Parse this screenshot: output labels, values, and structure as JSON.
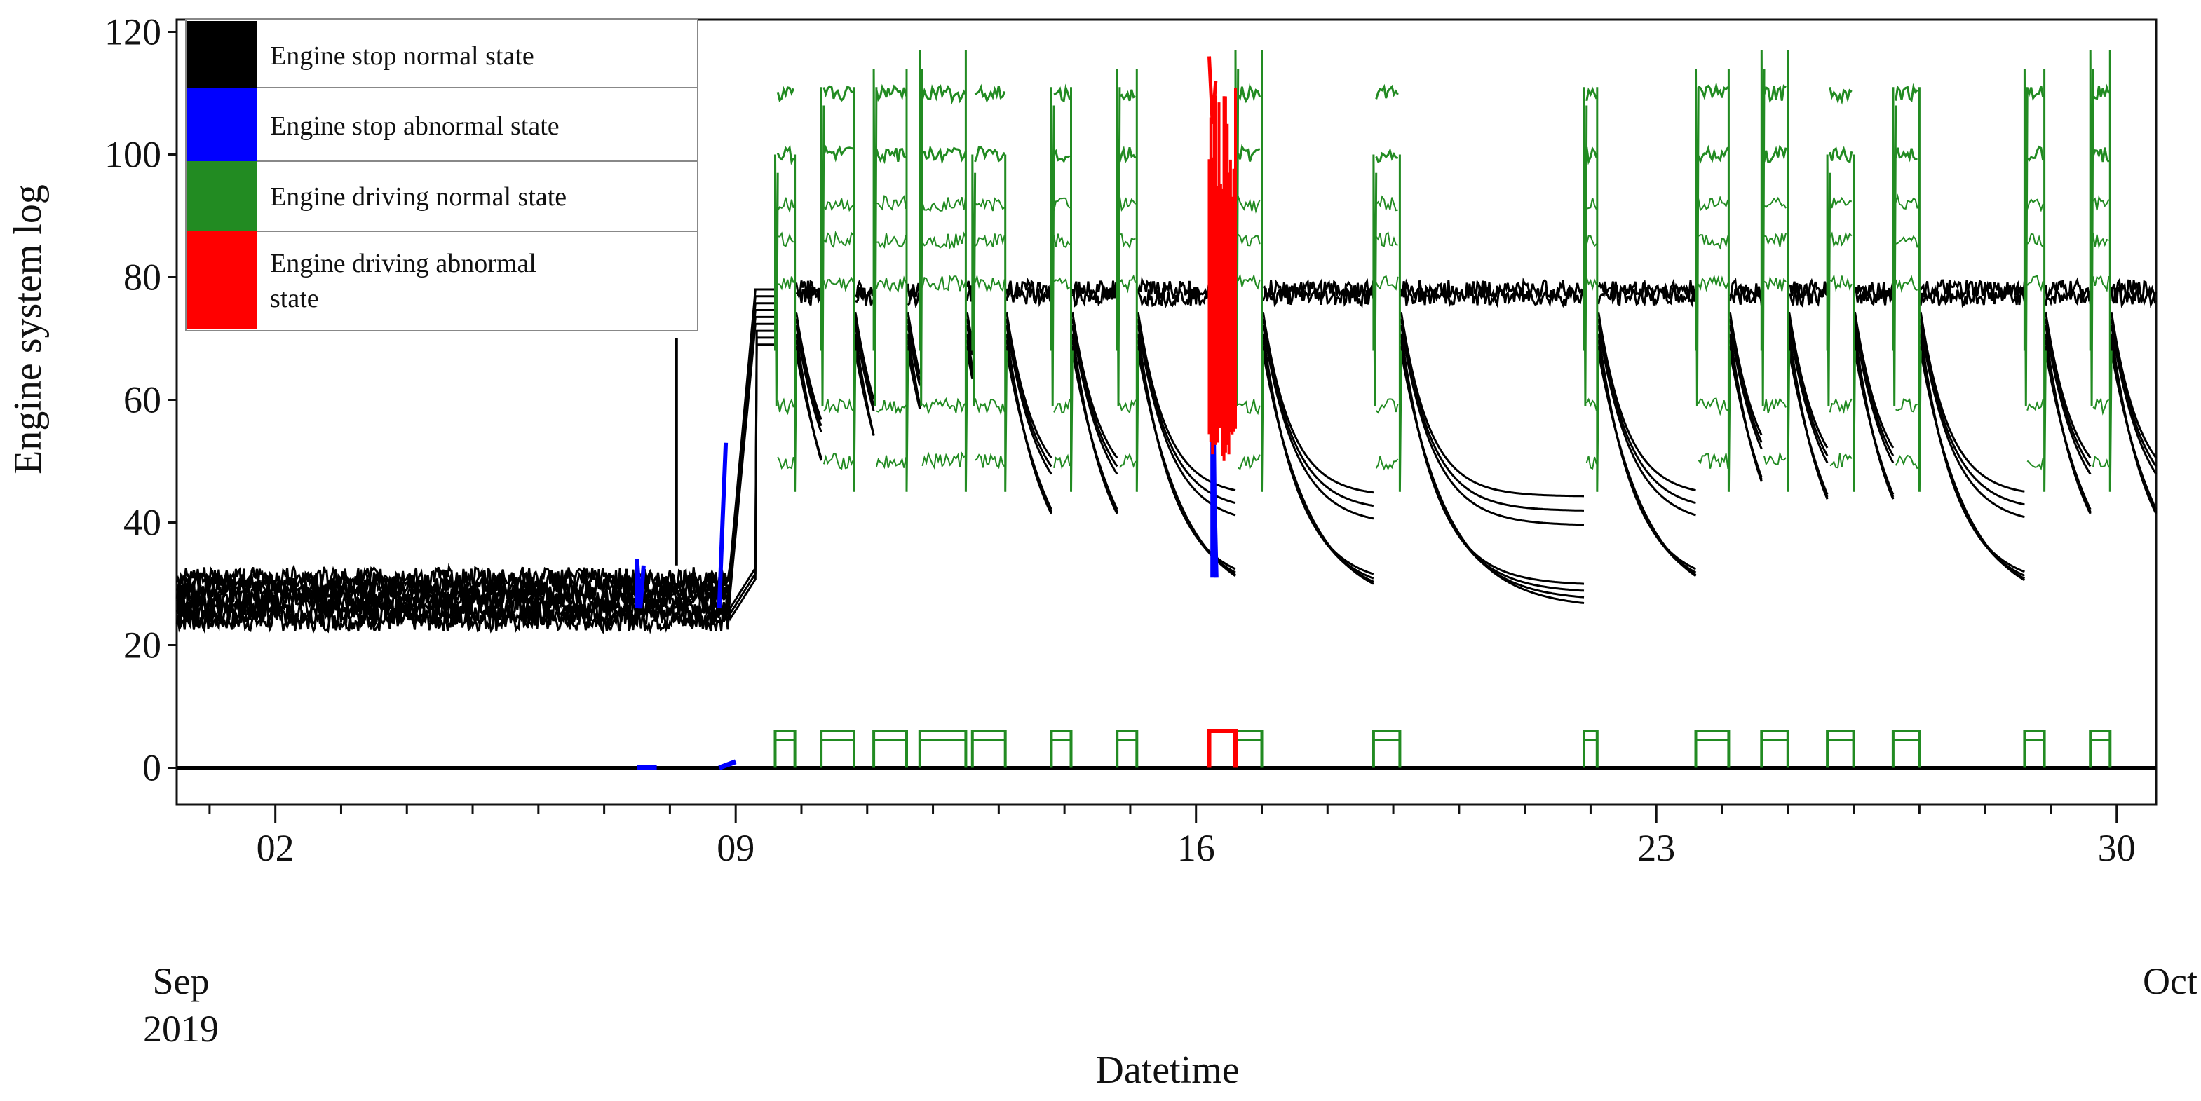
{
  "chart_data": {
    "type": "line",
    "title": "",
    "xlabel": "Datetime",
    "ylabel": "Engine system log",
    "ylim": [
      -6,
      122
    ],
    "xlim_days": [
      0.5,
      30.6
    ],
    "y_ticks": [
      0,
      20,
      40,
      60,
      80,
      100,
      120
    ],
    "x_ticks": [
      {
        "day": 2,
        "label": "02"
      },
      {
        "day": 9,
        "label": "09"
      },
      {
        "day": 16,
        "label": "16"
      },
      {
        "day": 23,
        "label": "23"
      },
      {
        "day": 30,
        "label": "30"
      }
    ],
    "x_start_label": {
      "month": "Sep",
      "year": "2019"
    },
    "x_end_label": "Oct",
    "grid": false,
    "legend_position": "top-left",
    "series": [
      {
        "name": "Engine stop normal state",
        "color": "#000000"
      },
      {
        "name": "Engine stop abnormal state",
        "color": "#0000ff"
      },
      {
        "name": "Engine driving normal state",
        "color": "#228b22"
      },
      {
        "name": "Engine driving abnormal state",
        "color": "#ff0000"
      }
    ],
    "approximate_shape": {
      "baseline_value": 0,
      "idle_temperature_band_before_sep9": [
        22,
        33
      ],
      "idle_temperature_band_after_sep9": [
        68,
        80
      ],
      "driving_peak_values": [
        100,
        111,
        114,
        117
      ],
      "driving_plateau_values": [
        50,
        59,
        79,
        86,
        92,
        100,
        110
      ],
      "stop_cooldown_min": [
        26,
        45
      ],
      "spike_day_8_value": 70,
      "driving_indicator_value": 6,
      "driving_sessions_start_day": [
        9.6,
        10.3,
        11.1,
        11.8,
        12.6,
        13.8,
        14.8,
        16.6,
        18.7,
        21.9,
        23.6,
        24.6,
        25.6,
        26.6,
        28.6,
        29.6
      ],
      "driving_sessions_end_day": [
        9.9,
        10.8,
        11.6,
        12.5,
        13.1,
        14.1,
        15.1,
        17.0,
        19.1,
        22.1,
        24.1,
        25.0,
        26.0,
        27.0,
        28.9,
        29.9
      ],
      "abnormal_stop_days": [
        7.5,
        8.75,
        16.25
      ],
      "abnormal_driving_day_range": [
        16.2,
        16.6
      ]
    }
  }
}
